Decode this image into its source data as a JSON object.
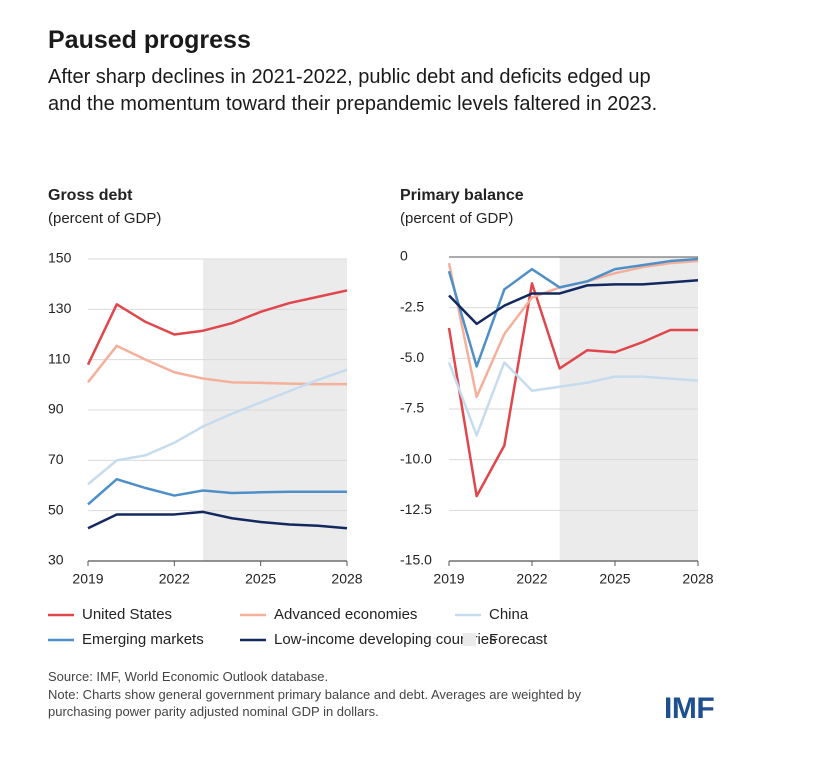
{
  "title": "Paused progress",
  "subtitle": "After sharp declines in 2021-2022, public debt and deficits edged up and the momentum toward their prepandemic levels faltered in 2023.",
  "forecast": {
    "label": "Forecast",
    "start": 2023,
    "color": "#ebebeb"
  },
  "chart_data": [
    {
      "type": "line",
      "title": "Gross debt",
      "ylabel": "(percent of GDP)",
      "x": [
        2019,
        2020,
        2021,
        2022,
        2023,
        2024,
        2025,
        2026,
        2027,
        2028
      ],
      "xlim": [
        2019,
        2028
      ],
      "xticks": [
        2019,
        2022,
        2025,
        2028
      ],
      "ylim": [
        30,
        150
      ],
      "yticks": [
        30,
        50,
        70,
        90,
        110,
        130,
        150
      ],
      "grid": true,
      "series": [
        {
          "name": "United States",
          "color": "#e0474c",
          "values": [
            108,
            132,
            125,
            120,
            121.5,
            124.5,
            129,
            132.5,
            135,
            137.5
          ]
        },
        {
          "name": "Advanced economies",
          "color": "#f4b09a",
          "values": [
            101,
            115.5,
            110,
            105,
            102.5,
            101,
            100.8,
            100.5,
            100.3,
            100.3
          ]
        },
        {
          "name": "China",
          "color": "#c6dcee",
          "values": [
            60.5,
            70,
            72,
            77,
            83.5,
            88.5,
            93,
            97.5,
            102,
            106
          ]
        },
        {
          "name": "Emerging markets",
          "color": "#4f8fc8",
          "values": [
            52.5,
            62.5,
            59,
            56,
            58,
            57,
            57.3,
            57.5,
            57.5,
            57.5
          ]
        },
        {
          "name": "Low-income developing countries",
          "color": "#13285e",
          "values": [
            43,
            48.5,
            48.5,
            48.5,
            49.5,
            47,
            45.5,
            44.5,
            44,
            43
          ]
        }
      ]
    },
    {
      "type": "line",
      "title": "Primary balance",
      "ylabel": "(percent of GDP)",
      "x": [
        2019,
        2020,
        2021,
        2022,
        2023,
        2024,
        2025,
        2026,
        2027,
        2028
      ],
      "xlim": [
        2019,
        2028
      ],
      "xticks": [
        2019,
        2022,
        2025,
        2028
      ],
      "ylim": [
        -15,
        0
      ],
      "yticks": [
        0,
        -2.5,
        {
          "value": -5,
          "label": "-5.0"
        },
        -7.5,
        {
          "value": -10,
          "label": "-10.0"
        },
        -12.5,
        {
          "value": -15,
          "label": "-15.0"
        }
      ],
      "grid": true,
      "series": [
        {
          "name": "United States",
          "color": "#e0474c",
          "values": [
            -3.5,
            -11.8,
            -9.3,
            -1.3,
            -5.5,
            -4.6,
            -4.7,
            -4.2,
            -3.6,
            -3.6
          ]
        },
        {
          "name": "Advanced economies",
          "color": "#f4b09a",
          "values": [
            -0.3,
            -6.9,
            -3.8,
            -2.0,
            -1.5,
            -1.2,
            -0.8,
            -0.5,
            -0.3,
            -0.2
          ]
        },
        {
          "name": "China",
          "color": "#c6dcee",
          "values": [
            -5.2,
            -8.8,
            -5.2,
            -6.6,
            -6.4,
            -6.2,
            -5.9,
            -5.9,
            -6.0,
            -6.1
          ]
        },
        {
          "name": "Emerging markets",
          "color": "#4f8fc8",
          "values": [
            -0.7,
            -5.4,
            -1.6,
            -0.6,
            -1.5,
            -1.2,
            -0.6,
            -0.4,
            -0.2,
            -0.1
          ]
        },
        {
          "name": "Low-income developing countries",
          "color": "#13285e",
          "values": [
            -1.9,
            -3.3,
            -2.4,
            -1.8,
            -1.8,
            -1.4,
            -1.35,
            -1.35,
            -1.25,
            -1.15
          ]
        }
      ]
    }
  ],
  "source": "Source: IMF, World Economic Outlook database.",
  "note": "Note: Charts show general government primary balance and debt. Averages are weighted by purchasing power parity adjusted nominal GDP in dollars.",
  "logo": "IMF"
}
